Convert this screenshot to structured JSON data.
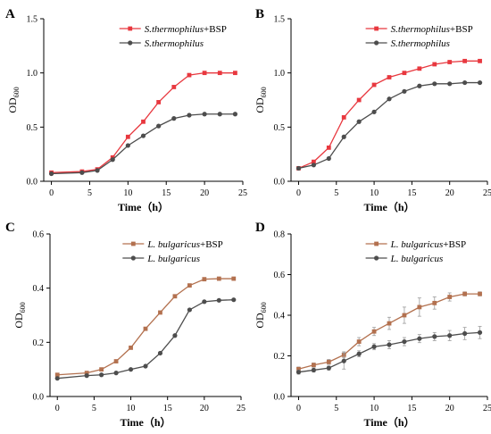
{
  "chart_data": [
    {
      "panel_label": "A",
      "type": "line",
      "xlabel": "Time（h）",
      "ylabel_main": "OD",
      "ylabel_sub": "600",
      "xlim": [
        -1,
        25
      ],
      "ylim": [
        0,
        1.5
      ],
      "xticks": [
        0,
        5,
        10,
        15,
        20,
        25
      ],
      "yticks": [
        0.0,
        0.5,
        1.0,
        1.5
      ],
      "ytick_labels": [
        "0.0",
        "0.5",
        "1.0",
        "1.5"
      ],
      "legend_position": "top-right",
      "x": [
        0,
        4,
        6,
        8,
        10,
        12,
        14,
        16,
        18,
        20,
        22,
        24
      ],
      "series": [
        {
          "name_italic": "S.thermophilus",
          "name_suffix": "+BSP",
          "color": "#e8383f",
          "marker": "square",
          "values": [
            0.08,
            0.09,
            0.11,
            0.22,
            0.41,
            0.55,
            0.73,
            0.87,
            0.98,
            1.0,
            1.0,
            1.0
          ]
        },
        {
          "name_italic": "S.thermophilus",
          "name_suffix": "",
          "color": "#4d4d4d",
          "marker": "circle",
          "values": [
            0.07,
            0.08,
            0.1,
            0.2,
            0.33,
            0.42,
            0.51,
            0.58,
            0.61,
            0.62,
            0.62,
            0.62
          ]
        }
      ]
    },
    {
      "panel_label": "B",
      "type": "line",
      "xlabel": "Time（h）",
      "ylabel_main": "OD",
      "ylabel_sub": "600",
      "xlim": [
        -1,
        25
      ],
      "ylim": [
        0,
        1.5
      ],
      "xticks": [
        0,
        5,
        10,
        15,
        20,
        25
      ],
      "yticks": [
        0.0,
        0.5,
        1.0,
        1.5
      ],
      "ytick_labels": [
        "0.0",
        "0.5",
        "1.0",
        "1.5"
      ],
      "legend_position": "top-right",
      "x": [
        0,
        2,
        4,
        6,
        8,
        10,
        12,
        14,
        16,
        18,
        20,
        22,
        24
      ],
      "series": [
        {
          "name_italic": "S.thermophilus",
          "name_suffix": "+BSP",
          "color": "#e8383f",
          "marker": "square",
          "values": [
            0.12,
            0.18,
            0.31,
            0.59,
            0.75,
            0.89,
            0.96,
            1.0,
            1.04,
            1.08,
            1.1,
            1.11,
            1.11
          ]
        },
        {
          "name_italic": "S.thermophilus",
          "name_suffix": "",
          "color": "#4d4d4d",
          "marker": "circle",
          "values": [
            0.12,
            0.15,
            0.21,
            0.41,
            0.55,
            0.64,
            0.76,
            0.83,
            0.88,
            0.9,
            0.9,
            0.91,
            0.91
          ]
        }
      ]
    },
    {
      "panel_label": "C",
      "type": "line",
      "xlabel": "Time（h）",
      "ylabel_main": "OD",
      "ylabel_sub": "600",
      "xlim": [
        -1,
        25
      ],
      "ylim": [
        0,
        0.6
      ],
      "xticks": [
        0,
        5,
        10,
        15,
        20,
        25
      ],
      "yticks": [
        0.0,
        0.2,
        0.4,
        0.6
      ],
      "ytick_labels": [
        "0.0",
        "0.2",
        "0.4",
        "0.6"
      ],
      "legend_position": "top-right",
      "x": [
        0,
        4,
        6,
        8,
        10,
        12,
        14,
        16,
        18,
        20,
        22,
        24
      ],
      "series": [
        {
          "name_italic": "L. bulgaricus",
          "name_suffix": "+BSP",
          "color": "#b3714f",
          "marker": "square",
          "values": [
            0.08,
            0.087,
            0.1,
            0.13,
            0.18,
            0.25,
            0.31,
            0.37,
            0.41,
            0.433,
            0.435,
            0.435
          ]
        },
        {
          "name_italic": "L. bulgaricus",
          "name_suffix": "",
          "color": "#4d4d4d",
          "marker": "circle",
          "values": [
            0.067,
            0.077,
            0.08,
            0.087,
            0.1,
            0.112,
            0.16,
            0.225,
            0.32,
            0.35,
            0.355,
            0.357
          ]
        }
      ]
    },
    {
      "panel_label": "D",
      "type": "line",
      "xlabel": "Time（h）",
      "ylabel_main": "OD",
      "ylabel_sub": "600",
      "xlim": [
        -1,
        25
      ],
      "ylim": [
        0,
        0.8
      ],
      "xticks": [
        0,
        5,
        10,
        15,
        20,
        25
      ],
      "yticks": [
        0.0,
        0.2,
        0.4,
        0.6,
        0.8
      ],
      "ytick_labels": [
        "0.0",
        "0.2",
        "0.4",
        "0.6",
        "0.8"
      ],
      "legend_position": "top-right",
      "x": [
        0,
        2,
        4,
        6,
        8,
        10,
        12,
        14,
        16,
        18,
        20,
        22,
        24
      ],
      "series": [
        {
          "name_italic": "L. bulgaricus",
          "name_suffix": "+BSP",
          "color": "#b3714f",
          "marker": "square",
          "values": [
            0.135,
            0.155,
            0.17,
            0.205,
            0.27,
            0.32,
            0.36,
            0.4,
            0.44,
            0.46,
            0.49,
            0.505,
            0.505
          ],
          "errors": [
            0.01,
            0.01,
            0.012,
            0.015,
            0.02,
            0.02,
            0.03,
            0.04,
            0.045,
            0.03,
            0.02,
            0.01,
            0.01
          ]
        },
        {
          "name_italic": "L. bulgaricus",
          "name_suffix": "",
          "color": "#4d4d4d",
          "marker": "circle",
          "values": [
            0.12,
            0.13,
            0.14,
            0.175,
            0.21,
            0.245,
            0.255,
            0.27,
            0.285,
            0.295,
            0.3,
            0.31,
            0.315
          ],
          "errors": [
            0.01,
            0.01,
            0.01,
            0.04,
            0.015,
            0.015,
            0.02,
            0.02,
            0.02,
            0.02,
            0.025,
            0.03,
            0.03
          ]
        }
      ]
    }
  ]
}
